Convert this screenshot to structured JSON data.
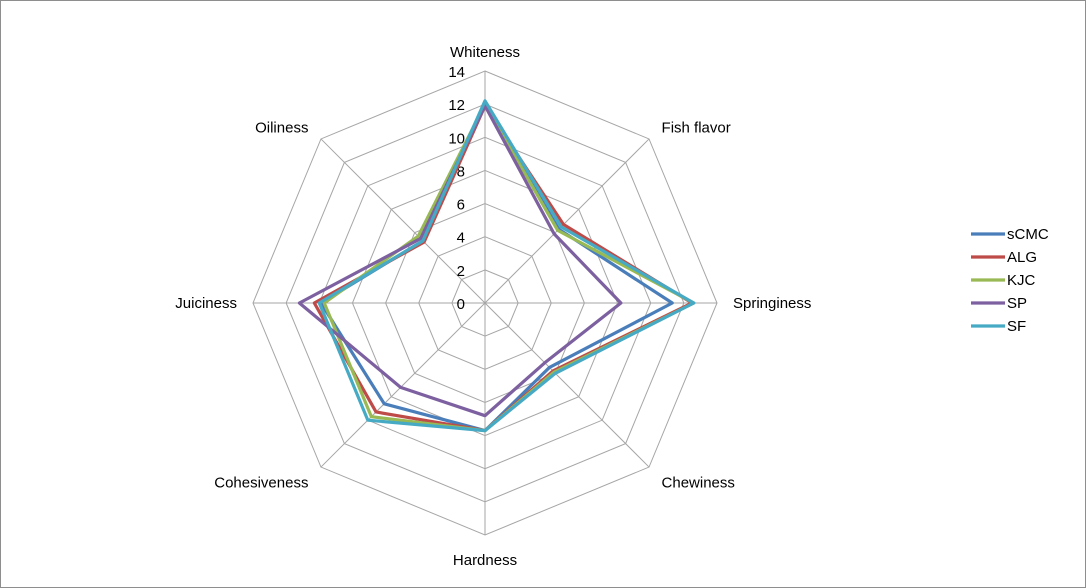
{
  "chart_data": {
    "type": "radar",
    "title": "",
    "axes": [
      "Whiteness",
      "Fish flavor",
      "Springiness",
      "Chewiness",
      "Hardness",
      "Cohesiveness",
      "Juiciness",
      "Oiliness"
    ],
    "rlim": [
      0,
      14
    ],
    "ticks": [
      0,
      2,
      4,
      6,
      8,
      10,
      12,
      14
    ],
    "grid": true,
    "legend_position": "right",
    "series": [
      {
        "name": "sCMC",
        "color": "#4a7ebb",
        "values": [
          12.0,
          6.3,
          11.3,
          5.5,
          7.7,
          8.6,
          9.9,
          5.3
        ]
      },
      {
        "name": "ALG",
        "color": "#be4b48",
        "values": [
          11.9,
          6.7,
          12.5,
          5.8,
          7.7,
          9.3,
          10.3,
          5.2
        ]
      },
      {
        "name": "KJC",
        "color": "#98b954",
        "values": [
          12.0,
          6.2,
          12.6,
          5.9,
          7.7,
          9.7,
          9.7,
          5.7
        ]
      },
      {
        "name": "SP",
        "color": "#7d60a0",
        "values": [
          11.9,
          5.9,
          8.2,
          5.1,
          6.8,
          7.2,
          11.2,
          5.5
        ]
      },
      {
        "name": "SF",
        "color": "#46aac5",
        "values": [
          12.2,
          6.5,
          12.6,
          6.0,
          7.7,
          10.0,
          10.0,
          5.3
        ]
      }
    ]
  }
}
